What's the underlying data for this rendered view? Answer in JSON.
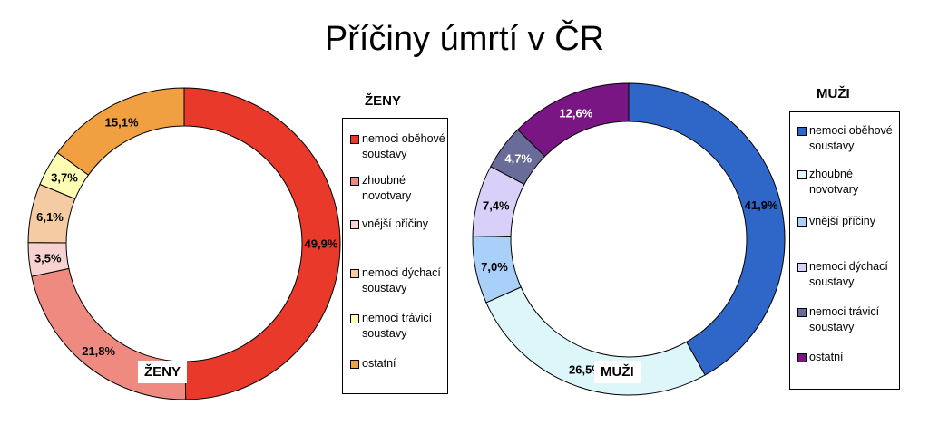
{
  "title": "Příčiny úmrtí v ČR",
  "chart_data": [
    {
      "type": "pie",
      "name": "ŽENY",
      "legend_title": "ŽENY",
      "center_label": "ŽENY",
      "categories": [
        "nemoci oběhové soustavy",
        "zhoubné novotvary",
        "vnější příčiny",
        "nemoci dýchací soustavy",
        "nemoci trávicí soustavy",
        "ostatní"
      ],
      "values": [
        49.9,
        21.8,
        3.5,
        6.1,
        3.7,
        15.1
      ],
      "labels": [
        "49,9%",
        "21,8%",
        "3,5%",
        "6,1%",
        "3,7%",
        "15,1%"
      ],
      "colors": [
        "#E8392A",
        "#EE8A80",
        "#F7D2D0",
        "#F5CBA4",
        "#FDFDB4",
        "#F0A040"
      ]
    },
    {
      "type": "pie",
      "name": "MUŽI",
      "legend_title": "MUŽI",
      "center_label": "MUŽI",
      "categories": [
        "nemoci oběhové soustavy",
        "zhoubné novotvary",
        "vnější příčiny",
        "nemoci dýchací soustavy",
        "nemoci trávicí soustavy",
        "ostatní"
      ],
      "values": [
        41.9,
        26.5,
        7.0,
        7.4,
        4.7,
        12.6
      ],
      "labels": [
        "41,9%",
        "26,5%",
        "7,0%",
        "7,4%",
        "4,7%",
        "12,6%"
      ],
      "colors": [
        "#2F67C8",
        "#DDF6FA",
        "#A8D0F8",
        "#D8D0F8",
        "#696C98",
        "#7A1683"
      ]
    }
  ]
}
